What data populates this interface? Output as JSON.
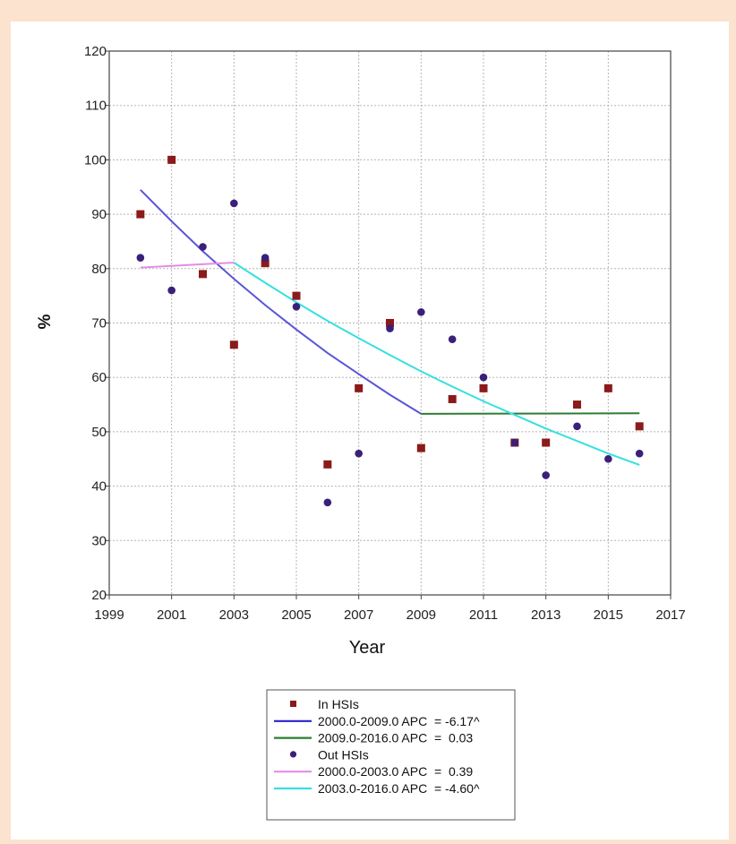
{
  "chart_data": {
    "type": "scatter",
    "xlabel": "Year",
    "ylabel": "%",
    "xlim": [
      1999,
      2017
    ],
    "ylim": [
      20,
      120
    ],
    "x_ticks": [
      "1999",
      "2001",
      "2003",
      "2005",
      "2007",
      "2009",
      "2011",
      "2013",
      "2015",
      "2017"
    ],
    "y_ticks": [
      "20",
      "30",
      "40",
      "50",
      "60",
      "70",
      "80",
      "90",
      "100",
      "110",
      "120"
    ],
    "grid": true,
    "legend_position": "bottom-center",
    "series": [
      {
        "name": "In HSIs",
        "kind": "points",
        "marker": "square",
        "color": "#8b1a1a",
        "x": [
          2000,
          2001,
          2002,
          2003,
          2004,
          2005,
          2006,
          2007,
          2008,
          2009,
          2010,
          2011,
          2012,
          2013,
          2014,
          2015,
          2016
        ],
        "y": [
          90,
          100,
          79,
          66,
          81,
          75,
          44,
          58,
          70,
          47,
          56,
          58,
          48,
          48,
          55,
          58,
          51
        ]
      },
      {
        "name": "Out HSIs",
        "kind": "points",
        "marker": "circle",
        "color": "#3b1f7a",
        "x": [
          2000,
          2001,
          2002,
          2003,
          2004,
          2005,
          2006,
          2007,
          2008,
          2009,
          2010,
          2011,
          2012,
          2013,
          2014,
          2015,
          2016
        ],
        "y": [
          82,
          76,
          84,
          92,
          82,
          73,
          37,
          46,
          69,
          72,
          67,
          60,
          48,
          42,
          51,
          45,
          46
        ]
      },
      {
        "name": "2000.0-2009.0 APC  = -6.17^",
        "kind": "line",
        "color": "#5a55d6",
        "legend_color": "#2a22cc",
        "x": [
          2000,
          2001,
          2002,
          2003,
          2004,
          2005,
          2006,
          2007,
          2008,
          2009
        ],
        "y": [
          94.5,
          88.7,
          83.2,
          78.1,
          73.3,
          68.8,
          64.5,
          60.6,
          56.8,
          53.3
        ]
      },
      {
        "name": "2009.0-2016.0 APC  =  0.03",
        "kind": "line",
        "color": "#2e7d32",
        "x": [
          2009,
          2016
        ],
        "y": [
          53.3,
          53.4
        ]
      },
      {
        "name": "2000.0-2003.0 APC  =  0.39",
        "kind": "line",
        "color": "#e58de5",
        "x": [
          2000,
          2001,
          2002,
          2003
        ],
        "y": [
          80.2,
          80.5,
          80.8,
          81.1
        ]
      },
      {
        "name": "2003.0-2016.0 APC  = -4.60^",
        "kind": "line",
        "color": "#36e0e0",
        "x": [
          2003,
          2004,
          2005,
          2006,
          2007,
          2008,
          2009,
          2010,
          2011,
          2012,
          2013,
          2014,
          2015,
          2016
        ],
        "y": [
          81.1,
          77.4,
          73.8,
          70.4,
          67.2,
          64.1,
          61.1,
          58.3,
          55.6,
          53.1,
          50.6,
          48.3,
          46.0,
          43.9
        ]
      }
    ],
    "legend": [
      {
        "label": "In HSIs",
        "symbol": "square",
        "color": "#8b1a1a"
      },
      {
        "label": "2000.0-2009.0 APC  = -6.17^",
        "symbol": "line",
        "color": "#2a22cc"
      },
      {
        "label": "2009.0-2016.0 APC  =  0.03",
        "symbol": "line",
        "color": "#2e7d32"
      },
      {
        "label": "Out HSIs",
        "symbol": "circle",
        "color": "#3b1f7a"
      },
      {
        "label": "2000.0-2003.0 APC  =  0.39",
        "symbol": "line",
        "color": "#e58de5"
      },
      {
        "label": "2003.0-2016.0 APC  = -4.60^",
        "symbol": "line",
        "color": "#36e0e0"
      }
    ]
  }
}
